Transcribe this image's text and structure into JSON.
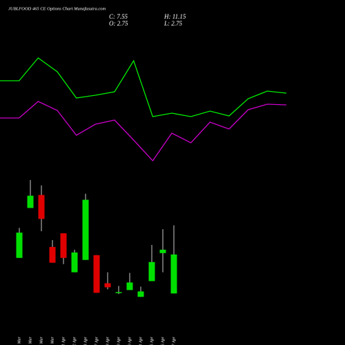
{
  "title": "JUBLFOOD 465 CE Options Chart Munafasutra.com",
  "ohlc_labels": {
    "close": "C: 7.55",
    "high": "H: 11.15",
    "open": "O: 2.75",
    "low": "L: 2.75"
  },
  "chart_data": [
    {
      "type": "line",
      "ylim": [
        0,
        100
      ],
      "series": [
        {
          "color": "#00ee00",
          "values": [
            71.5,
            71.5,
            88,
            78,
            59,
            61,
            63.5,
            86,
            45.5,
            48,
            45.5,
            49.5,
            46,
            58.5,
            64,
            62.5
          ]
        },
        {
          "color": "#cc00cc",
          "values": [
            44.5,
            44.5,
            56.5,
            50,
            32,
            40,
            43,
            28.5,
            13.5,
            33.5,
            26.5,
            41.5,
            36.5,
            50.5,
            54.5,
            54
          ]
        }
      ]
    },
    {
      "type": "candlestick",
      "ylim": [
        1.5,
        18.5
      ],
      "up_color": "#00e000",
      "down_color": "#e00000",
      "categories": [
        "24 Mar",
        "25 Mar",
        "27 Mar",
        "28 Mar",
        "01 Apr",
        "02 Apr",
        "03 Apr",
        "07 Apr",
        "08 Apr",
        "09 Apr",
        "10 Apr",
        "11 Apr",
        "15 Apr",
        "16 Apr",
        "17 Apr"
      ],
      "open": [
        7.13,
        13.28,
        14.88,
        8.48,
        10.16,
        5.36,
        6.88,
        7.47,
        4.01,
        2.83,
        3.17,
        2.33,
        4.27,
        7.72,
        2.75
      ],
      "high": [
        10.83,
        16.73,
        16.06,
        9.32,
        10.16,
        8.14,
        15.04,
        7.47,
        5.36,
        3.68,
        5.28,
        3.59,
        8.73,
        10.67,
        11.15
      ],
      "low": [
        7.13,
        13.28,
        10.41,
        6.54,
        6.37,
        5.36,
        6.88,
        2.83,
        3.26,
        2.67,
        3.17,
        2.33,
        4.27,
        5.36,
        2.75
      ],
      "close": [
        10.24,
        14.79,
        11.93,
        6.54,
        7.13,
        7.8,
        14.29,
        2.83,
        3.51,
        2.92,
        4.1,
        3.0,
        6.62,
        8.14,
        7.55
      ]
    }
  ]
}
